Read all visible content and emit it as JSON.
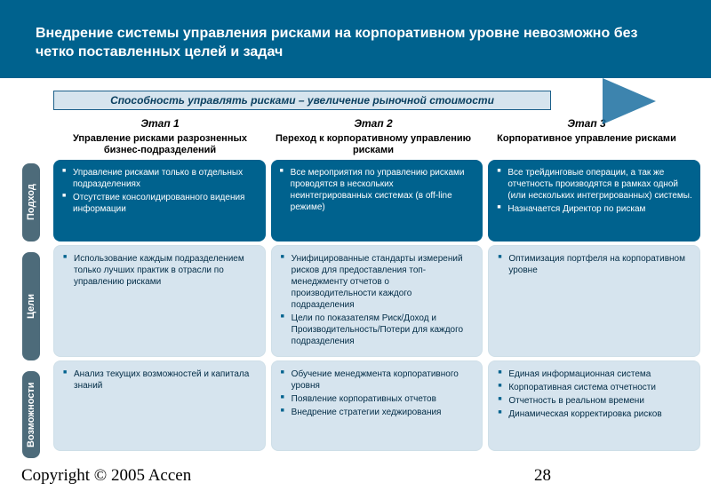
{
  "header_title": "Внедрение системы управления рисками на корпоративном уровне невозможно без четко поставленных целей и задач",
  "ribbon": "Способность управлять рисками – увеличение рыночной стоимости",
  "stages": [
    {
      "num": "Этап 1",
      "desc": "Управление рисками разрозненных бизнес-подразделений"
    },
    {
      "num": "Этап 2",
      "desc": "Переход к корпоративному управлению рисками"
    },
    {
      "num": "Этап 3",
      "desc": "Корпоративное управление рисками"
    }
  ],
  "row_labels": [
    "Подход",
    "Цели",
    "Возможности"
  ],
  "cells": {
    "approach": [
      [
        "Управление рисками только в отдельных подразделениях",
        "Отсутствие консолидированного видения информации"
      ],
      [
        "Все мероприятия по управлению рисками проводятся в нескольких неинтегрированных системах (в off-line режиме)"
      ],
      [
        "Все трейдинговые операции, а так же отчетность производятся в рамках одной (или нескольких интегрированных) системы.",
        "Назначается Директор по рискам"
      ]
    ],
    "goals": [
      [
        "Использование каждым подразделением только лучших практик в отрасли по управлению рисками"
      ],
      [
        "Унифицированные стандарты измерений рисков для предоставления топ-менеджменту отчетов о производительности каждого подразделения",
        "Цели по показателям Риск/Доход и Производительность/Потери для каждого подразделения"
      ],
      [
        "Оптимизация портфеля на корпоративном уровне"
      ]
    ],
    "capabilities": [
      [
        "Анализ текущих возможностей и капитала знаний"
      ],
      [
        "Обучение менеджмента корпоративного уровня",
        "Появление корпоративных отчетов",
        "Внедрение стратегии хеджирования"
      ],
      [
        "Единая информационная система",
        "Корпоративная система отчетности",
        "Отчетность в реальном времени",
        "Динамическая корректировка рисков"
      ]
    ]
  },
  "copyright": "Copyright © 2005 Accen",
  "page_number": "28",
  "colors": {
    "header_bg": "#00628e",
    "dark_cell": "#00628e",
    "light_cell": "#d6e4ee",
    "row_label_bg": "#4d6b7a"
  }
}
